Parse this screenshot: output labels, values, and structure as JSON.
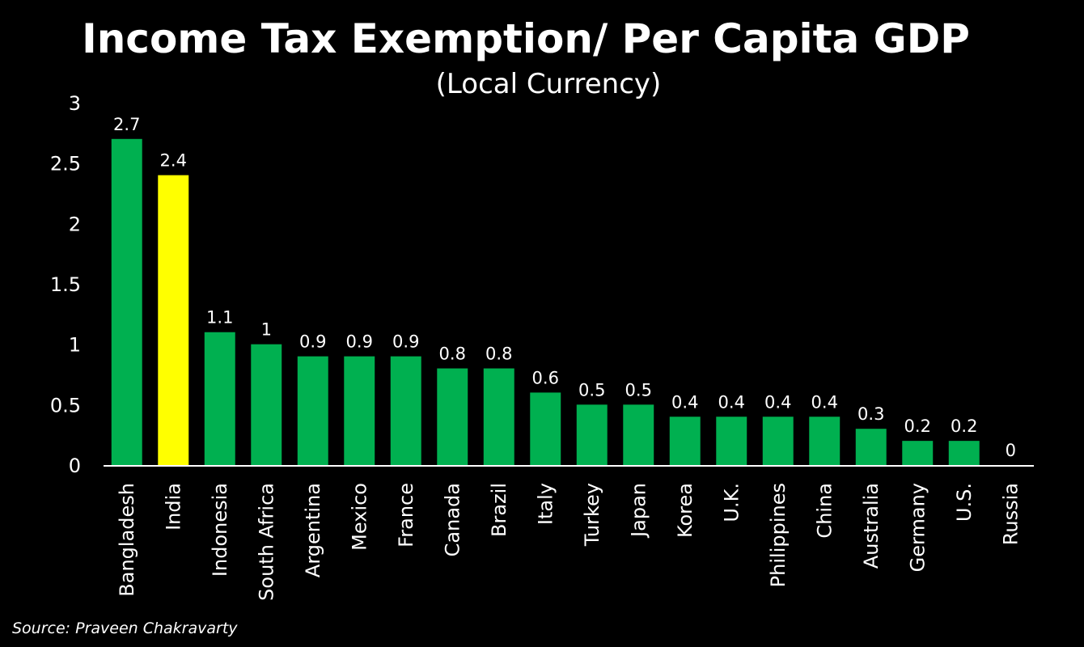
{
  "chart_data": {
    "type": "bar",
    "title": "Income Tax Exemption/ Per Capita GDP",
    "subtitle": "(Local Currency)",
    "xlabel": "",
    "ylabel": "",
    "ylim": [
      0,
      3
    ],
    "yticks": [
      0,
      0.5,
      1,
      1.5,
      2,
      2.5,
      3
    ],
    "ytick_labels": [
      "0",
      "0.5",
      "1",
      "1.5",
      "2",
      "2.5",
      "3"
    ],
    "grid": false,
    "legend": "none",
    "categories": [
      "Bangladesh",
      "India",
      "Indonesia",
      "South Africa",
      "Argentina",
      "Mexico",
      "France",
      "Canada",
      "Brazil",
      "Italy",
      "Turkey",
      "Japan",
      "Korea",
      "U.K.",
      "Philippines",
      "China",
      "Australia",
      "Germany",
      "U.S.",
      "Russia"
    ],
    "values": [
      2.7,
      2.4,
      1.1,
      1,
      0.9,
      0.9,
      0.9,
      0.8,
      0.8,
      0.6,
      0.5,
      0.5,
      0.4,
      0.4,
      0.4,
      0.4,
      0.3,
      0.2,
      0.2,
      0
    ],
    "data_labels": [
      "2.7",
      "2.4",
      "1.1",
      "1",
      "0.9",
      "0.9",
      "0.9",
      "0.8",
      "0.8",
      "0.6",
      "0.5",
      "0.5",
      "0.4",
      "0.4",
      "0.4",
      "0.4",
      "0.3",
      "0.2",
      "0.2",
      "0"
    ],
    "highlight_category": "India",
    "colors": {
      "bar": "#00b050",
      "highlight": "#ffff00",
      "background": "#000000",
      "text": "#ffffff",
      "axis": "#ffffff"
    },
    "source": "Source: Praveen Chakravarty"
  }
}
